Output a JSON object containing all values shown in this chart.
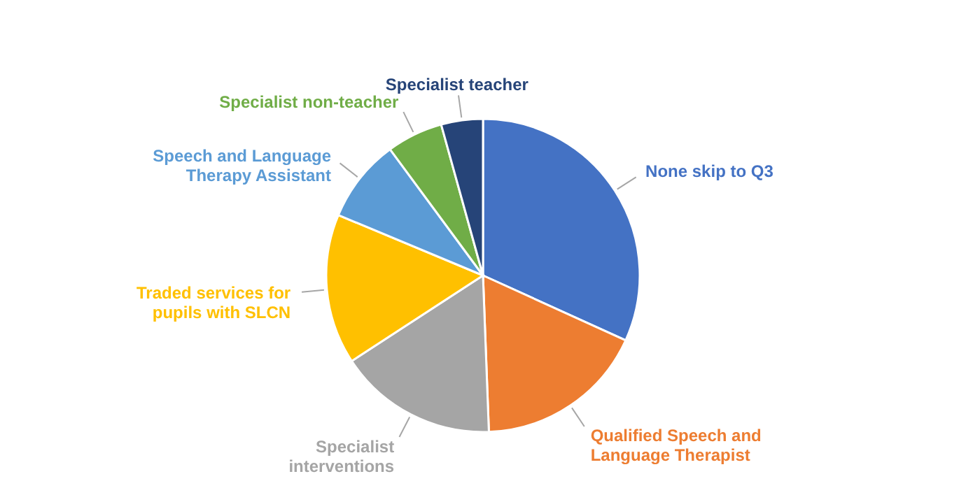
{
  "chart_data": {
    "type": "pie",
    "categories": [
      "None skip to Q3",
      "Qualified Speech and Language Therapist",
      "Specialist interventions",
      "Traded services for pupils with SLCN",
      "Speech and Language Therapy Assistant",
      "Specialist non-teacher",
      "Specialist teacher"
    ],
    "values": [
      31.8,
      17.6,
      16.4,
      15.5,
      8.6,
      5.8,
      4.3
    ],
    "colors": [
      "#4472c4",
      "#ed7d31",
      "#a5a5a5",
      "#ffc000",
      "#5b9bd5",
      "#70ad47",
      "#264478"
    ]
  }
}
